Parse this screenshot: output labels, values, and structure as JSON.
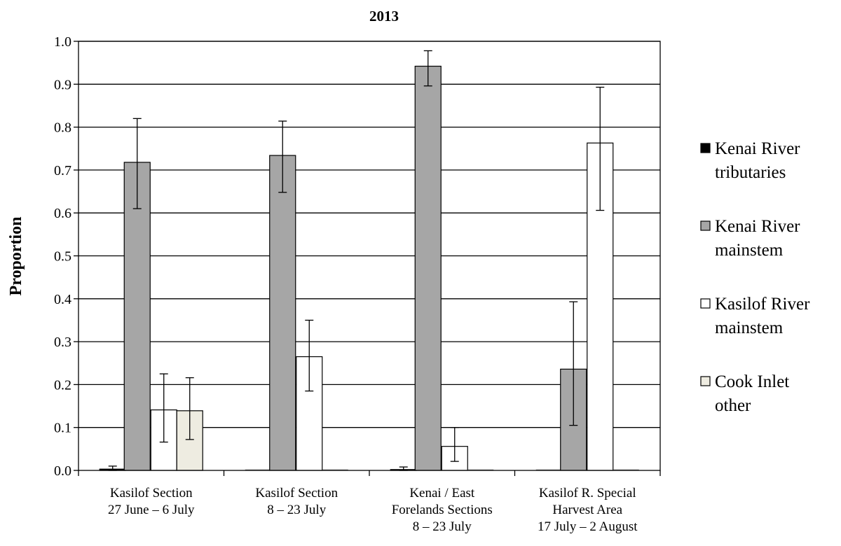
{
  "chart_data": {
    "type": "bar",
    "title": "2013",
    "xlabel": "",
    "ylabel": "Proportion",
    "ylim": [
      0,
      1.0
    ],
    "yticks": [
      "0.0",
      "0.1",
      "0.2",
      "0.3",
      "0.4",
      "0.5",
      "0.6",
      "0.7",
      "0.8",
      "0.9",
      "1.0"
    ],
    "grid": true,
    "legend_position": "right",
    "categories": [
      [
        "Kasilof Section",
        "27 June – 6 July"
      ],
      [
        "Kasilof Section",
        "8 – 23 July"
      ],
      [
        "Kenai / East",
        "Forelands Sections",
        "8 – 23 July"
      ],
      [
        "Kasilof R. Special",
        "Harvest Area",
        "17 July – 2 August"
      ]
    ],
    "series": [
      {
        "name": [
          "Kenai River",
          "tributaries"
        ],
        "color": "#000000",
        "values": [
          0.003,
          0.0,
          0.002,
          0.0
        ],
        "err_low": [
          0.0,
          null,
          0.0,
          null
        ],
        "err_high": [
          0.01,
          null,
          0.008,
          null
        ]
      },
      {
        "name": [
          "Kenai River",
          "mainstem"
        ],
        "color": "#a6a6a6",
        "values": [
          0.718,
          0.734,
          0.942,
          0.236
        ],
        "err_low": [
          0.61,
          0.648,
          0.896,
          0.105
        ],
        "err_high": [
          0.82,
          0.814,
          0.978,
          0.393
        ]
      },
      {
        "name": [
          "Kasilof River",
          "mainstem"
        ],
        "color": "#ffffff",
        "values": [
          0.141,
          0.265,
          0.056,
          0.763
        ],
        "err_low": [
          0.066,
          0.185,
          0.021,
          0.606
        ],
        "err_high": [
          0.225,
          0.35,
          0.1,
          0.893
        ]
      },
      {
        "name": [
          "Cook Inlet",
          "other"
        ],
        "color": "#eeece1",
        "values": [
          0.139,
          0.0,
          0.0,
          0.0
        ],
        "err_low": [
          0.072,
          null,
          null,
          null
        ],
        "err_high": [
          0.216,
          null,
          null,
          null
        ]
      }
    ]
  }
}
